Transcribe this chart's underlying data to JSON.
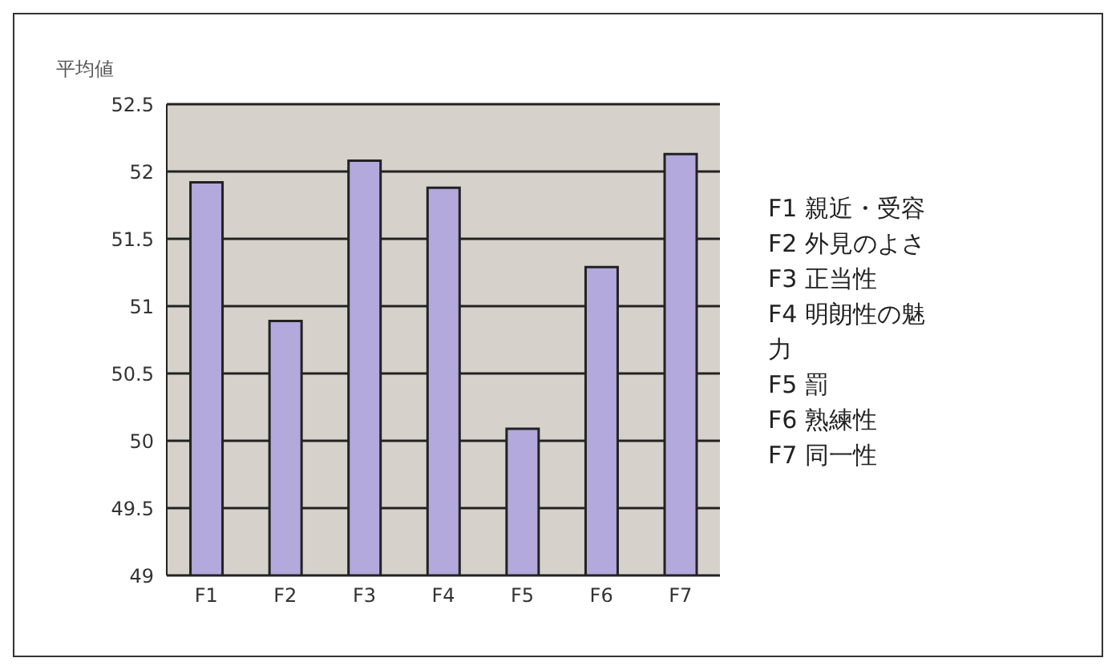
{
  "chart_data": {
    "type": "bar",
    "ylabel": "平均値",
    "categories": [
      "F1",
      "F2",
      "F3",
      "F4",
      "F5",
      "F6",
      "F7"
    ],
    "values": [
      51.92,
      50.89,
      52.08,
      51.88,
      50.09,
      51.29,
      52.13
    ],
    "color": "#b3a9dc",
    "ylim": [
      49,
      52.5
    ],
    "yticks": [
      49,
      49.5,
      50,
      50.5,
      51,
      51.5,
      52,
      52.5
    ],
    "grid": "y",
    "annotations": [
      "F1 親近・受容",
      "F2 外見のよさ",
      "F3 正当性",
      "F4 明朗性の魅力",
      "F5 罰",
      "F6 熟練性",
      "F7 同一性"
    ]
  }
}
